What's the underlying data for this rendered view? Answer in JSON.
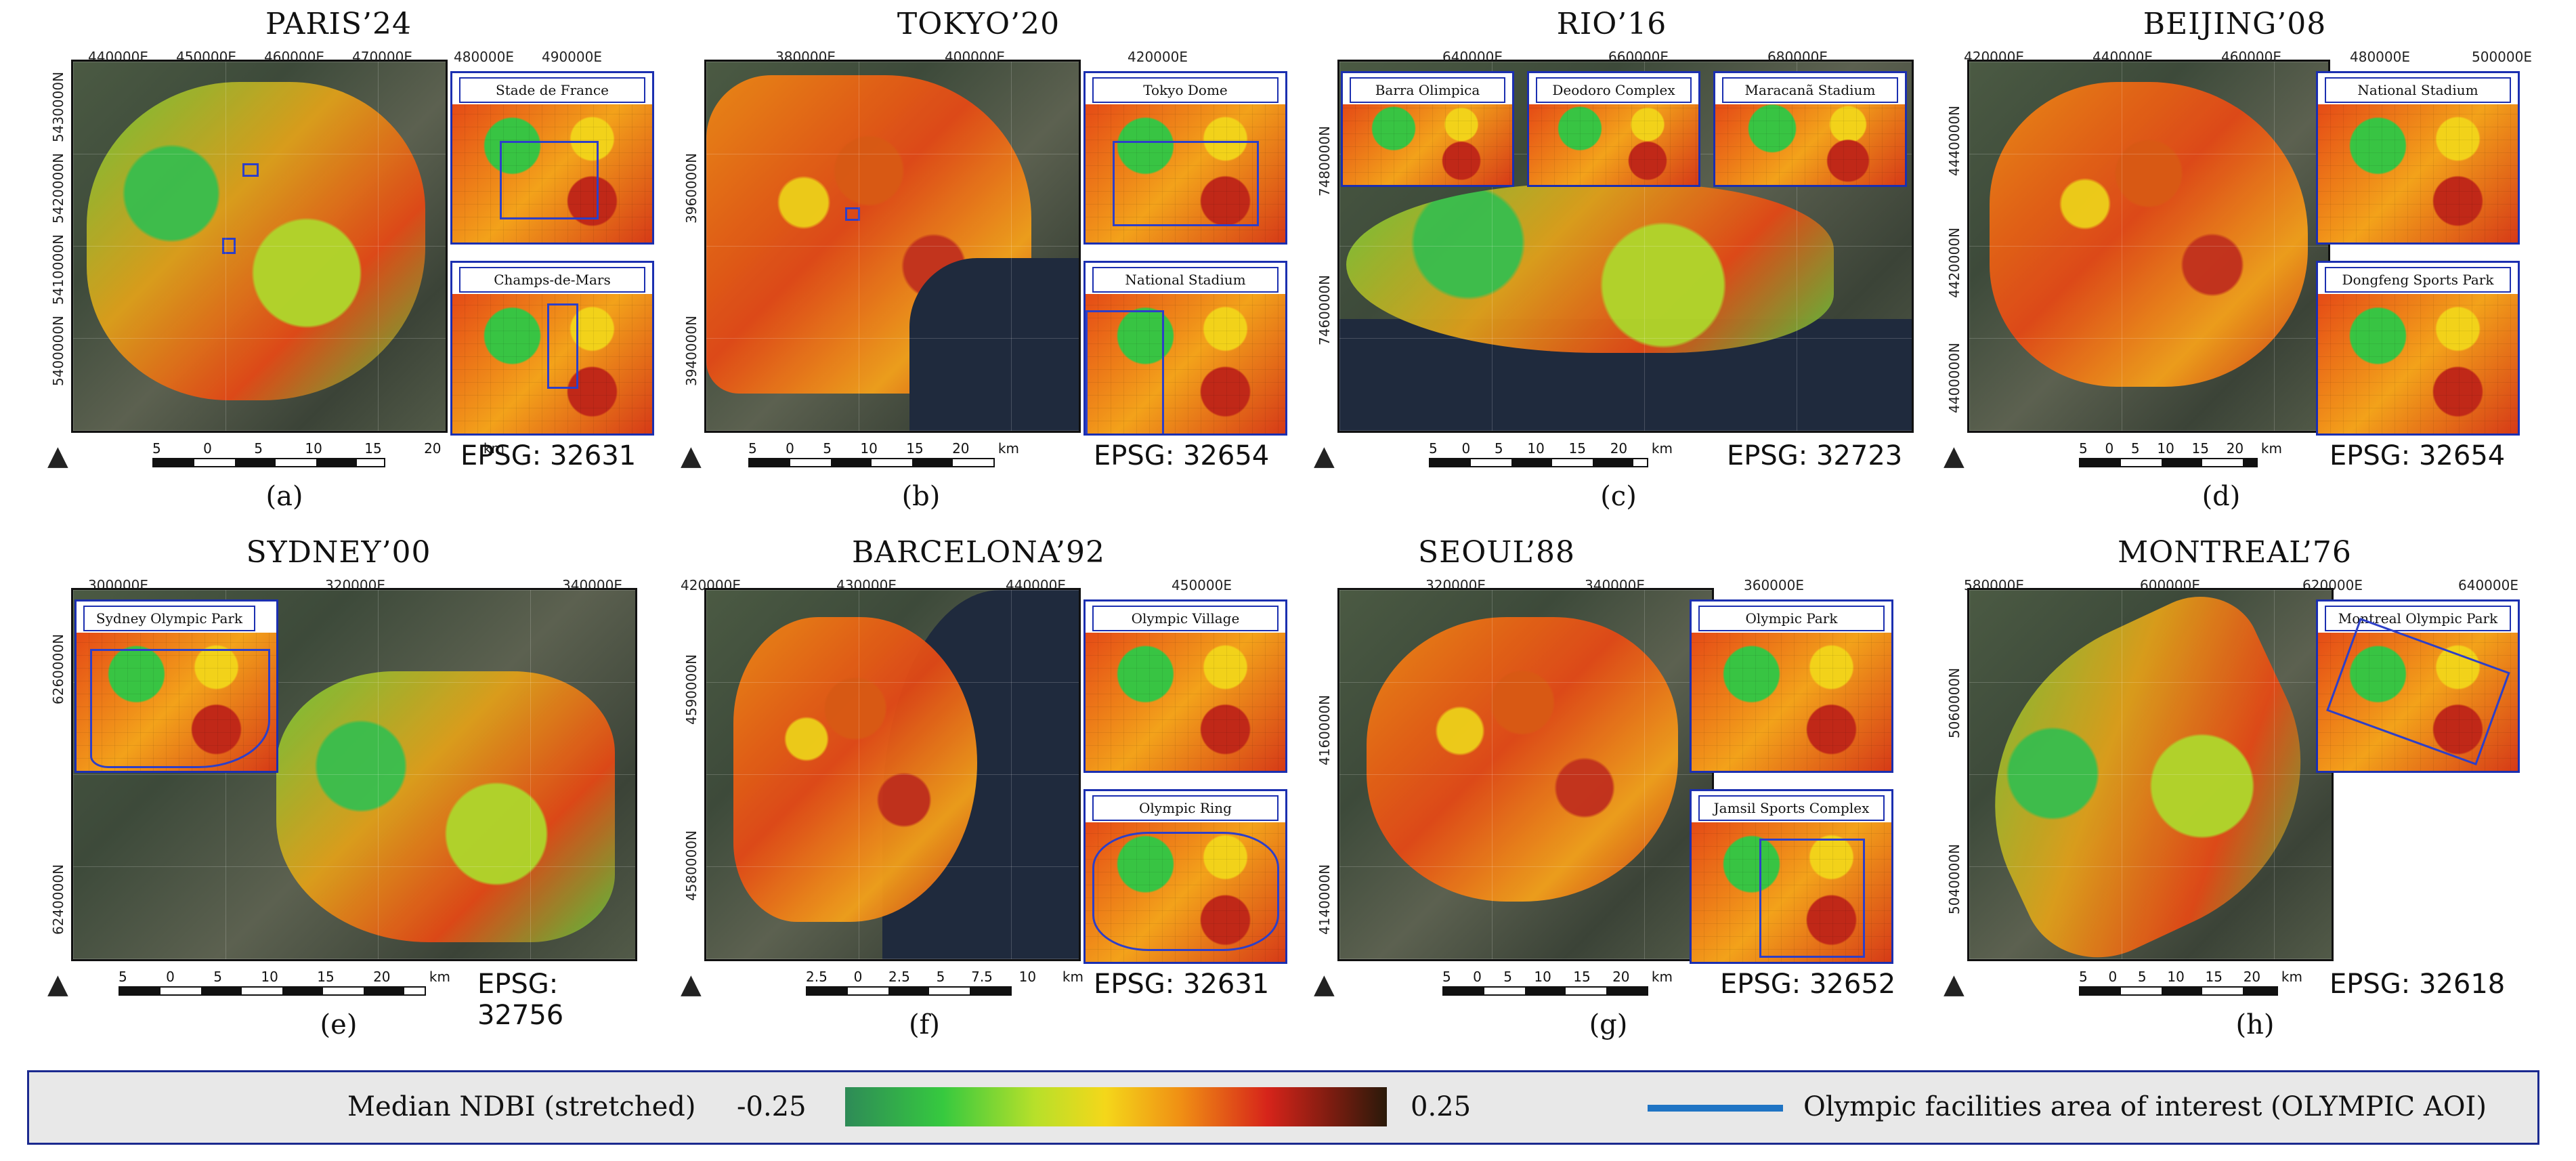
{
  "panels": [
    {
      "title": "PARIS’24",
      "caption": "(a)",
      "epsg": "EPSG: 32631",
      "xticks": [
        "440000E",
        "450000E",
        "460000E",
        "470000E",
        "480000E",
        "490000E"
      ],
      "yticks": [
        "5430000N",
        "5420000N",
        "5410000N",
        "5400000N"
      ],
      "scale": [
        "5",
        "0",
        "5",
        "10",
        "15",
        "20",
        "km"
      ],
      "insets": [
        "Stade de France",
        "Champs-de-Mars"
      ]
    },
    {
      "title": "TOKYO’20",
      "caption": "(b)",
      "epsg": "EPSG: 32654",
      "xticks": [
        "380000E",
        "400000E",
        "420000E"
      ],
      "yticks": [
        "3960000N",
        "3940000N"
      ],
      "scale": [
        "5",
        "0",
        "5",
        "10",
        "15",
        "20",
        "km"
      ],
      "insets": [
        "Tokyo Dome",
        "National Stadium"
      ]
    },
    {
      "title": "RIO’16",
      "caption": "(c)",
      "epsg": "EPSG: 32723",
      "xticks": [
        "640000E",
        "660000E",
        "680000E"
      ],
      "yticks": [
        "7480000N",
        "7460000N"
      ],
      "scale": [
        "5",
        "0",
        "5",
        "10",
        "15",
        "20",
        "km"
      ],
      "insets": [
        "Barra Olimpica",
        "Deodoro Complex",
        "Maracanã Stadium"
      ]
    },
    {
      "title": "BEIJING’08",
      "caption": "(d)",
      "epsg": "EPSG: 32654",
      "xticks": [
        "420000E",
        "440000E",
        "460000E",
        "480000E",
        "500000E"
      ],
      "yticks": [
        "4440000N",
        "4420000N",
        "4400000N"
      ],
      "scale": [
        "5",
        "0",
        "5",
        "10",
        "15",
        "20",
        "km"
      ],
      "insets": [
        "National Stadium",
        "Dongfeng Sports Park"
      ]
    },
    {
      "title": "SYDNEY’00",
      "caption": "(e)",
      "epsg": "EPSG: 32756",
      "xticks": [
        "300000E",
        "320000E",
        "340000E"
      ],
      "yticks": [
        "6260000N",
        "6240000N"
      ],
      "scale": [
        "5",
        "0",
        "5",
        "10",
        "15",
        "20",
        "km"
      ],
      "insets": [
        "Sydney Olympic Park"
      ]
    },
    {
      "title": "BARCELONA’92",
      "caption": "(f)",
      "epsg": "EPSG: 32631",
      "xticks": [
        "420000E",
        "430000E",
        "440000E",
        "450000E"
      ],
      "yticks": [
        "4590000N",
        "4580000N"
      ],
      "scale": [
        "2.5",
        "0",
        "2.5",
        "5",
        "7.5",
        "10",
        "km"
      ],
      "insets": [
        "Olympic Village",
        "Olympic Ring"
      ]
    },
    {
      "title": "SEOUL’88",
      "caption": "(g)",
      "epsg": "EPSG: 32652",
      "xticks": [
        "320000E",
        "340000E",
        "360000E"
      ],
      "yticks": [
        "4160000N",
        "4140000N"
      ],
      "scale": [
        "5",
        "0",
        "5",
        "10",
        "15",
        "20",
        "km"
      ],
      "insets": [
        "Olympic Park",
        "Jamsil Sports Complex"
      ]
    },
    {
      "title": "MONTREAL’76",
      "caption": "(h)",
      "epsg": "EPSG: 32618",
      "xticks": [
        "580000E",
        "600000E",
        "620000E",
        "640000E"
      ],
      "yticks": [
        "5060000N",
        "5040000N"
      ],
      "scale": [
        "5",
        "0",
        "5",
        "10",
        "15",
        "20",
        "km"
      ],
      "insets": [
        "Montreal Olympic Park"
      ]
    }
  ],
  "north_symbol": "north-arrow",
  "legend": {
    "ndbi_label": "Median NDBI (stretched)",
    "min": "-0.25",
    "max": "0.25",
    "aoi_label": "Olympic facilities area of interest (OLYMPIC AOI)",
    "colormap": [
      "#2e8b57",
      "#36c93f",
      "#b7e02a",
      "#f4d71a",
      "#f08f14",
      "#d6241a",
      "#7a1c10",
      "#2a1a0a"
    ],
    "aoi_color": "#1f74c4"
  }
}
